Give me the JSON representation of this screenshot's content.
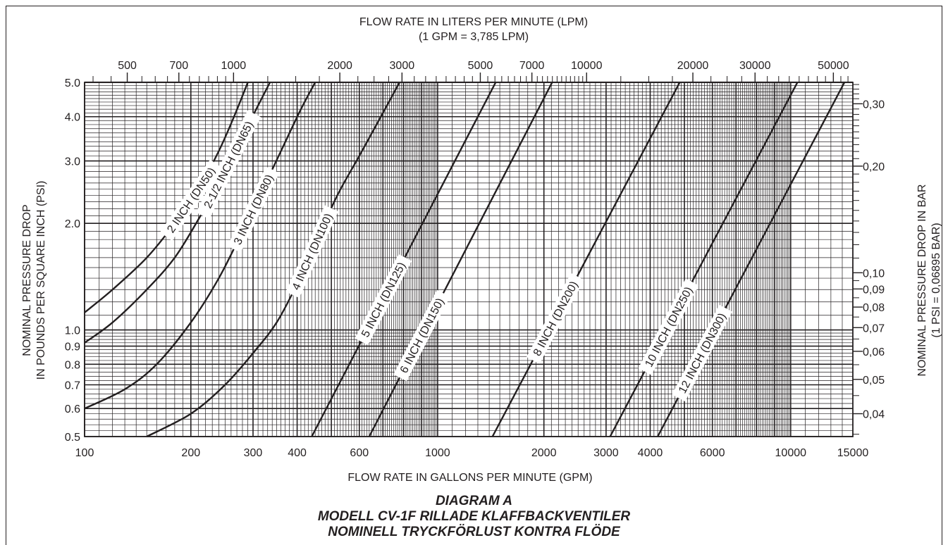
{
  "chart_data": {
    "type": "line",
    "log_x": true,
    "log_y": true,
    "xlabel": "FLOW RATE IN GALLONS PER MINUTE (GPM)",
    "ylabel_line1": "NOMINAL PRESSURE DROP",
    "ylabel_line2": "IN POUNDS PER SQUARE INCH (PSI)",
    "top_axis_label_line1": "FLOW RATE IN LITERS PER MINUTE (LPM)",
    "top_axis_label_line2": "(1 GPM = 3,785 LPM)",
    "right_axis_label_line1": "NOMINAL PRESSURE DROP IN BAR",
    "right_axis_label_line2": "(1 PSI = 0,06895 BAR)",
    "xlim": [
      100,
      15000
    ],
    "ylim": [
      0.5,
      5.0
    ],
    "grid": true,
    "x_ticks": [
      {
        "value": 100,
        "label": "100"
      },
      {
        "value": 200,
        "label": "200"
      },
      {
        "value": 300,
        "label": "300"
      },
      {
        "value": 400,
        "label": "400"
      },
      {
        "value": 600,
        "label": "600"
      },
      {
        "value": 1000,
        "label": "1000"
      },
      {
        "value": 2000,
        "label": "2000"
      },
      {
        "value": 3000,
        "label": "3000"
      },
      {
        "value": 4000,
        "label": "4000"
      },
      {
        "value": 6000,
        "label": "6000"
      },
      {
        "value": 10000,
        "label": "10000"
      },
      {
        "value": 15000,
        "label": "15000"
      }
    ],
    "y_ticks": [
      {
        "value": 0.5,
        "label": "0.5"
      },
      {
        "value": 0.6,
        "label": "0.6"
      },
      {
        "value": 0.7,
        "label": "0.7"
      },
      {
        "value": 0.8,
        "label": "0.8"
      },
      {
        "value": 0.9,
        "label": "0.9"
      },
      {
        "value": 1.0,
        "label": "1.0"
      },
      {
        "value": 2.0,
        "label": "2.0"
      },
      {
        "value": 3.0,
        "label": "3.0"
      },
      {
        "value": 4.0,
        "label": "4.0"
      },
      {
        "value": 5.0,
        "label": "5.0"
      }
    ],
    "top_ticks_lpm": [
      {
        "value": 500,
        "label": "500"
      },
      {
        "value": 700,
        "label": "700"
      },
      {
        "value": 1000,
        "label": "1000"
      },
      {
        "value": 2000,
        "label": "2000"
      },
      {
        "value": 3000,
        "label": "3000"
      },
      {
        "value": 5000,
        "label": "5000"
      },
      {
        "value": 7000,
        "label": "7000"
      },
      {
        "value": 10000,
        "label": "10000"
      },
      {
        "value": 20000,
        "label": "20000"
      },
      {
        "value": 30000,
        "label": "30000"
      },
      {
        "value": 50000,
        "label": "50000"
      }
    ],
    "right_ticks_bar": [
      {
        "value": 0.3,
        "label": "0,30"
      },
      {
        "value": 0.2,
        "label": "0,20"
      },
      {
        "value": 0.1,
        "label": "0,10"
      },
      {
        "value": 0.09,
        "label": "0,09"
      },
      {
        "value": 0.08,
        "label": "0,08"
      },
      {
        "value": 0.07,
        "label": "0,07"
      },
      {
        "value": 0.06,
        "label": "0,06"
      },
      {
        "value": 0.05,
        "label": "0,05"
      },
      {
        "value": 0.04,
        "label": "0,04"
      }
    ],
    "series": [
      {
        "name": "2 INCH (DN50)",
        "label_at": 200,
        "points": [
          [
            100,
            1.12
          ],
          [
            120,
            1.3
          ],
          [
            150,
            1.6
          ],
          [
            180,
            2.0
          ],
          [
            210,
            2.5
          ],
          [
            240,
            3.2
          ],
          [
            265,
            4.0
          ],
          [
            290,
            5.0
          ]
        ]
      },
      {
        "name": "2-1/2 INCH (DN65)",
        "label_at": 255,
        "points": [
          [
            100,
            0.92
          ],
          [
            120,
            1.05
          ],
          [
            150,
            1.3
          ],
          [
            180,
            1.6
          ],
          [
            210,
            2.05
          ],
          [
            240,
            2.6
          ],
          [
            275,
            3.4
          ],
          [
            310,
            4.3
          ],
          [
            335,
            5.0
          ]
        ]
      },
      {
        "name": "3 INCH (DN80)",
        "label_at": 300,
        "points": [
          [
            100,
            0.6
          ],
          [
            130,
            0.68
          ],
          [
            160,
            0.8
          ],
          [
            200,
            1.05
          ],
          [
            240,
            1.4
          ],
          [
            280,
            1.9
          ],
          [
            320,
            2.5
          ],
          [
            360,
            3.2
          ],
          [
            410,
            4.2
          ],
          [
            450,
            5.0
          ]
        ]
      },
      {
        "name": "4 INCH (DN100)",
        "label_at": 440,
        "points": [
          [
            150,
            0.5
          ],
          [
            200,
            0.58
          ],
          [
            250,
            0.7
          ],
          [
            300,
            0.86
          ],
          [
            350,
            1.05
          ],
          [
            400,
            1.35
          ],
          [
            450,
            1.75
          ],
          [
            520,
            2.4
          ],
          [
            600,
            3.1
          ],
          [
            700,
            4.1
          ],
          [
            780,
            5.0
          ]
        ]
      },
      {
        "name": "5 INCH (DN125)",
        "label_at": 700,
        "points": [
          [
            440,
            0.5
          ],
          [
            1460,
            5.0
          ]
        ]
      },
      {
        "name": "6 INCH (DN150)",
        "label_at": 900,
        "points": [
          [
            640,
            0.5
          ],
          [
            2110,
            5.0
          ]
        ]
      },
      {
        "name": "8 INCH (DN200)",
        "label_at": 2150,
        "points": [
          [
            1430,
            0.5
          ],
          [
            4850,
            5.0
          ]
        ]
      },
      {
        "name": "10 INCH (DN250)",
        "label_at": 4500,
        "points": [
          [
            3080,
            0.5
          ],
          [
            10450,
            5.0
          ]
        ]
      },
      {
        "name": "12 INCH (DN300)",
        "label_at": 5600,
        "points": [
          [
            4200,
            0.5
          ],
          [
            14200,
            5.0
          ]
        ]
      }
    ],
    "title_line1": "DIAGRAM A",
    "title_line2": "MODELL CV-1F RILLADE KLAFFBACKVENTILER",
    "title_line3": "NOMINELL TRYCKFÖRLUST KONTRA FLÖDE"
  }
}
